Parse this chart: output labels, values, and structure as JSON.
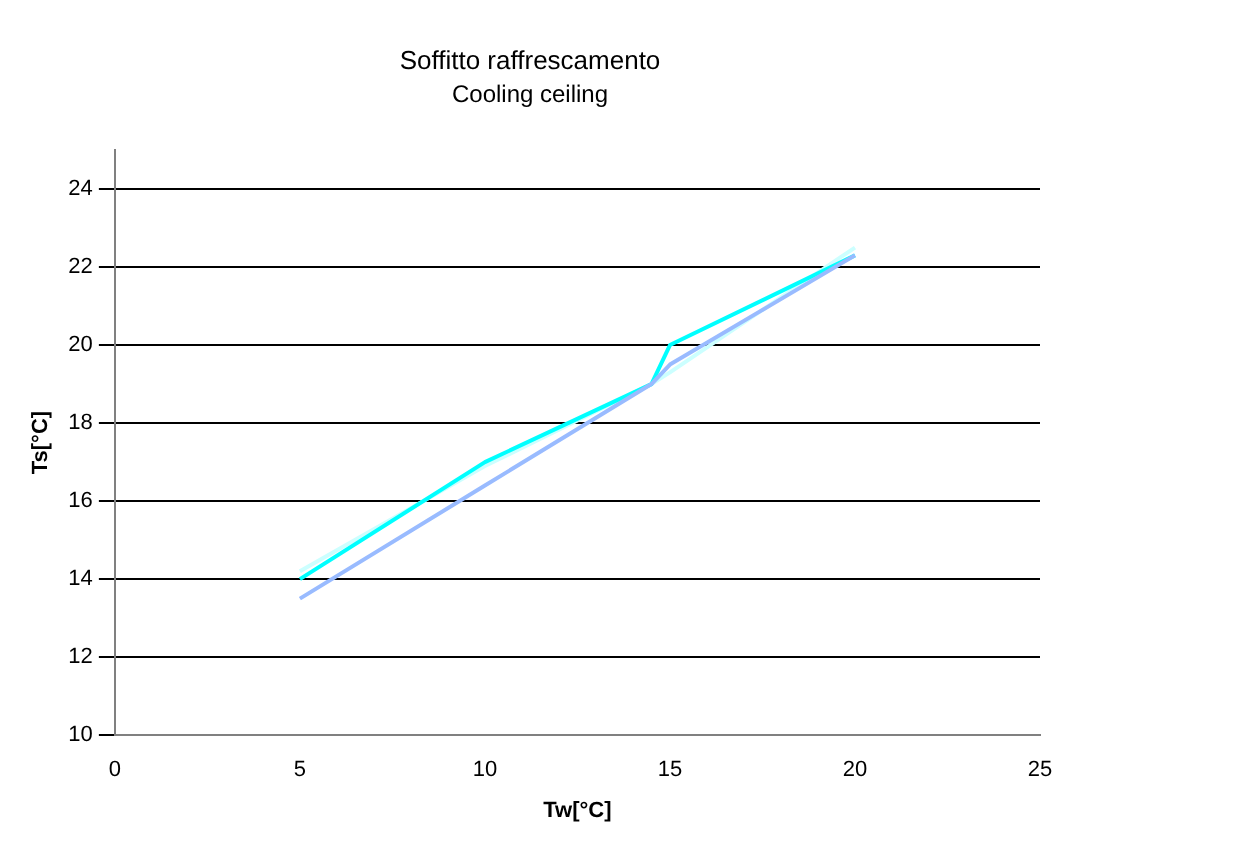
{
  "chart_data": {
    "type": "line",
    "title": "Soffitto raffrescamento",
    "subtitle": "Cooling ceiling",
    "xlabel": "Tw[°C]",
    "ylabel": "Ts[°C]",
    "x": [
      5,
      10,
      14.5,
      15,
      20
    ],
    "series": [
      {
        "color": "#99bbff",
        "values": [
          13.5,
          16.4,
          19.0,
          19.5,
          22.3
        ]
      },
      {
        "color": "#00ffff",
        "values": [
          14.0,
          17.0,
          19.0,
          20.0,
          22.3
        ]
      },
      {
        "color": "#ccffff",
        "values": [
          14.2,
          16.9,
          19.0,
          19.3,
          22.5
        ]
      }
    ],
    "xlim": [
      0,
      25
    ],
    "xticks": [
      0,
      5,
      10,
      15,
      20,
      25
    ],
    "ylim": [
      10,
      25
    ],
    "yticks": [
      10,
      12,
      14,
      16,
      18,
      20,
      22,
      24
    ],
    "grid": "y",
    "marker": "none",
    "line_style": "solid"
  }
}
